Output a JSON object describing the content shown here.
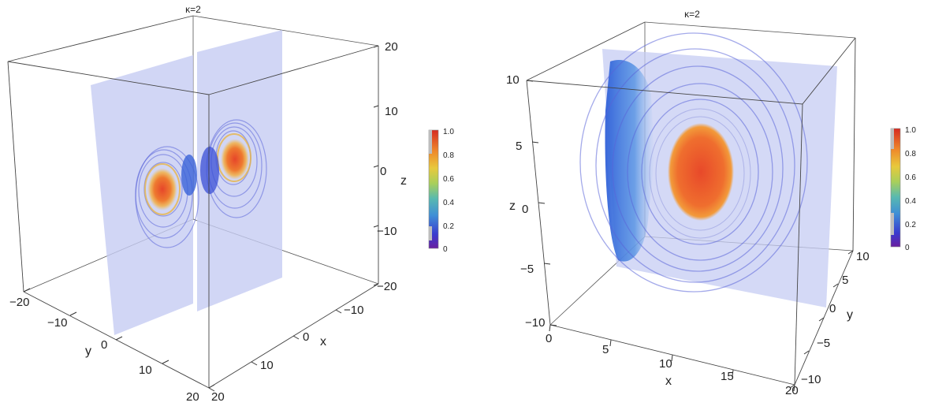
{
  "chart_data": [
    {
      "type": "3d-density-slices",
      "title": "κ=2",
      "xlabel": "x",
      "ylabel": "y",
      "zlabel": "z",
      "x_ticks": [
        "20",
        "10",
        "0",
        "−10"
      ],
      "y_ticks": [
        "−20",
        "−10",
        "0",
        "10",
        "20"
      ],
      "z_ticks": [
        "20",
        "10",
        "0",
        "−10",
        "−20"
      ],
      "xlim": [
        -20,
        20
      ],
      "ylim": [
        -20,
        20
      ],
      "zlim": [
        -20,
        20
      ],
      "colorbar": {
        "range": [
          0,
          1
        ],
        "ticks": [
          "1.0",
          "0.8",
          "0.6",
          "0.4",
          "0.2",
          "0"
        ]
      }
    },
    {
      "type": "3d-density-slices",
      "title": "κ=2",
      "xlabel": "x",
      "ylabel": "y",
      "zlabel": "z",
      "x_ticks": [
        "0",
        "5",
        "10",
        "15",
        "20"
      ],
      "y_ticks": [
        "10",
        "5",
        "0",
        "−5",
        "−10"
      ],
      "z_ticks": [
        "10",
        "5",
        "0",
        "−5",
        "−10"
      ],
      "xlim": [
        0,
        20
      ],
      "ylim": [
        -10,
        10
      ],
      "zlim": [
        -10,
        10
      ],
      "colorbar": {
        "range": [
          0,
          1
        ],
        "ticks": [
          "1.0",
          "0.8",
          "0.6",
          "0.4",
          "0.2",
          "0"
        ]
      }
    }
  ]
}
